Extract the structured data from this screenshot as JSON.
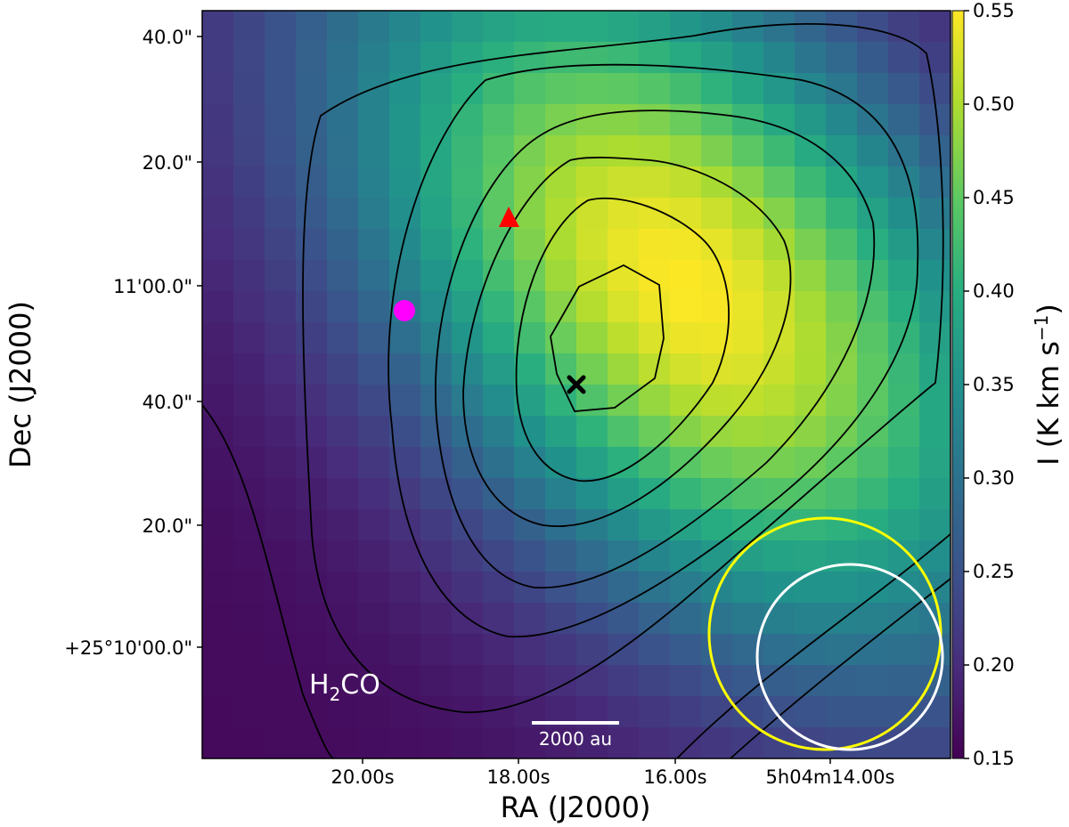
{
  "chart_data": {
    "type": "heatmap",
    "xlabel": "RA (J2000)",
    "ylabel": "Dec (J2000)",
    "x_ticks": [
      "20.00s",
      "18.00s",
      "16.00s",
      "5h04m14.00s"
    ],
    "y_ticks": [
      "+25°10'00.0\"",
      "20.0\"",
      "40.0\"",
      "11'00.0\"",
      "20.0\"",
      "40.0\""
    ],
    "colorbar": {
      "label": "I (K km s",
      "label_superscript": "−1",
      "label_suffix": ")",
      "range": [
        0.15,
        0.55
      ],
      "ticks": [
        "0.15",
        "0.20",
        "0.25",
        "0.30",
        "0.35",
        "0.40",
        "0.45",
        "0.50",
        "0.55"
      ],
      "colormap": "viridis"
    },
    "molecule_label": {
      "base": "H",
      "sub": "2",
      "rest": "CO"
    },
    "scale_bar_label": "2000 au",
    "markers": [
      {
        "name": "red-triangle",
        "shape": "triangle",
        "color": "#ff0000"
      },
      {
        "name": "magenta-circle",
        "shape": "circle",
        "color": "#ff00ff"
      },
      {
        "name": "black-cross",
        "shape": "cross",
        "color": "#000000"
      }
    ],
    "beams": [
      {
        "name": "yellow-beam",
        "color": "#ffff00"
      },
      {
        "name": "white-beam",
        "color": "#ffffff"
      }
    ],
    "contour_color": "#000000"
  }
}
